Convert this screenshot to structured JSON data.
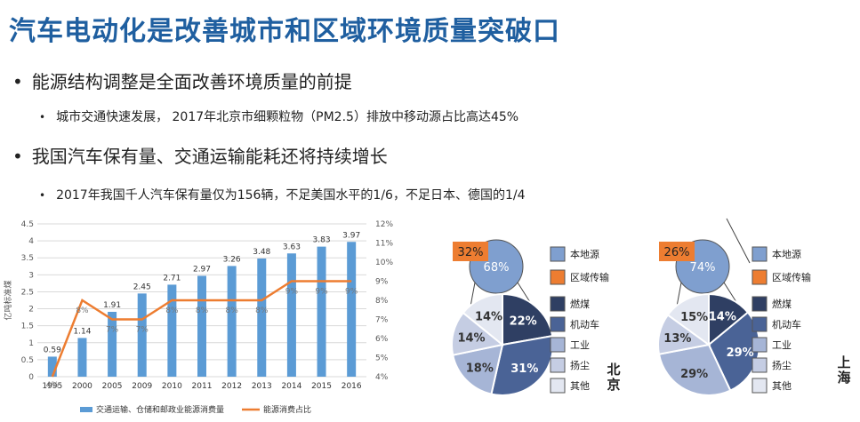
{
  "page": {
    "title": "汽车电动化是改善城市和区域环境质量突破口",
    "bullets": [
      {
        "text": "能源结构调整是全面改善环境质量的前提",
        "sub": "城市交通快速发展， 2017年北京市细颗粒物（PM2.5）排放中移动源占比高达45%"
      },
      {
        "text": "我国汽车保有量、交通运输能耗还将持续增长",
        "sub": "2017年我国千人汽车保有量仅为156辆，不足美国水平的1/6，不足日本、德国的1/4"
      }
    ],
    "bullet_symbol": "•"
  },
  "colors": {
    "title": "#1f5fa0",
    "bar": "#5b9bd5",
    "line": "#ed7d31",
    "local": "#7f9fcf",
    "regional": "#ed7d31",
    "coal": "#2f3f63",
    "vehicle": "#4a6396",
    "industry": "#a6b5d6",
    "dust": "#c5cde3",
    "other": "#e3e7f1"
  },
  "chart_data": [
    {
      "type": "bar",
      "categories": [
        "1995",
        "2000",
        "2005",
        "2009",
        "2010",
        "2011",
        "2012",
        "2013",
        "2014",
        "2015",
        "2016"
      ],
      "series": [
        {
          "name": "交通运输、仓储和邮政业能源消费量",
          "type": "bar",
          "axis": "left",
          "values": [
            0.59,
            1.14,
            1.91,
            2.45,
            2.71,
            2.97,
            3.26,
            3.48,
            3.63,
            3.83,
            3.97
          ]
        },
        {
          "name": "能源消费占比",
          "type": "line",
          "axis": "right",
          "values": [
            4,
            8,
            7,
            7,
            8,
            8,
            8,
            8,
            9,
            9,
            9
          ]
        }
      ],
      "ylabel": "亿吨标准煤",
      "yticks_left": [
        "0",
        "0.5",
        "1",
        "1.5",
        "2",
        "2.5",
        "3",
        "3.5",
        "4",
        "4.5"
      ],
      "ylim_left": [
        0,
        4.5
      ],
      "yticks_right": [
        "4%",
        "5%",
        "6%",
        "7%",
        "8%",
        "9%",
        "10%",
        "11%",
        "12%"
      ],
      "ylim_right": [
        4,
        12
      ],
      "bar_labels": [
        "0.59",
        "1.14",
        "1.91",
        "2.45",
        "2.71",
        "2.97",
        "3.26",
        "3.48",
        "3.63",
        "3.83",
        "3.97"
      ],
      "line_labels": [
        "4%",
        "8%",
        "7%",
        "7%",
        "8%",
        "8%",
        "8%",
        "8%",
        "9%",
        "9%",
        "9%"
      ],
      "legend": "bottom",
      "grid": true
    },
    {
      "type": "pie",
      "city": "北京",
      "top": [
        {
          "label": "区域传输",
          "value": 32,
          "text": "32%"
        },
        {
          "label": "本地源",
          "value": 68,
          "text": "68%"
        }
      ],
      "bottom": [
        {
          "label": "燃煤",
          "value": 22,
          "text": "22%"
        },
        {
          "label": "机动车",
          "value": 31,
          "text": "31%"
        },
        {
          "label": "工业",
          "value": 18,
          "text": "18%"
        },
        {
          "label": "扬尘",
          "value": 14,
          "text": "14%"
        },
        {
          "label": "其他",
          "value": 14,
          "text": "14%"
        }
      ]
    },
    {
      "type": "pie",
      "city": "上海",
      "top": [
        {
          "label": "区域传输",
          "value": 26,
          "text": "26%"
        },
        {
          "label": "本地源",
          "value": 74,
          "text": "74%"
        }
      ],
      "bottom": [
        {
          "label": "燃煤",
          "value": 14,
          "text": "14%"
        },
        {
          "label": "机动车",
          "value": 29,
          "text": "29%"
        },
        {
          "label": "工业",
          "value": 29,
          "text": "29%"
        },
        {
          "label": "扬尘",
          "value": 13,
          "text": "13%"
        },
        {
          "label": "其他",
          "value": 15,
          "text": "15%"
        }
      ]
    }
  ],
  "legend_labels": {
    "local": "本地源",
    "regional": "区域传输",
    "coal": "燃煤",
    "vehicle": "机动车",
    "industry": "工业",
    "dust": "扬尘",
    "other": "其他"
  }
}
